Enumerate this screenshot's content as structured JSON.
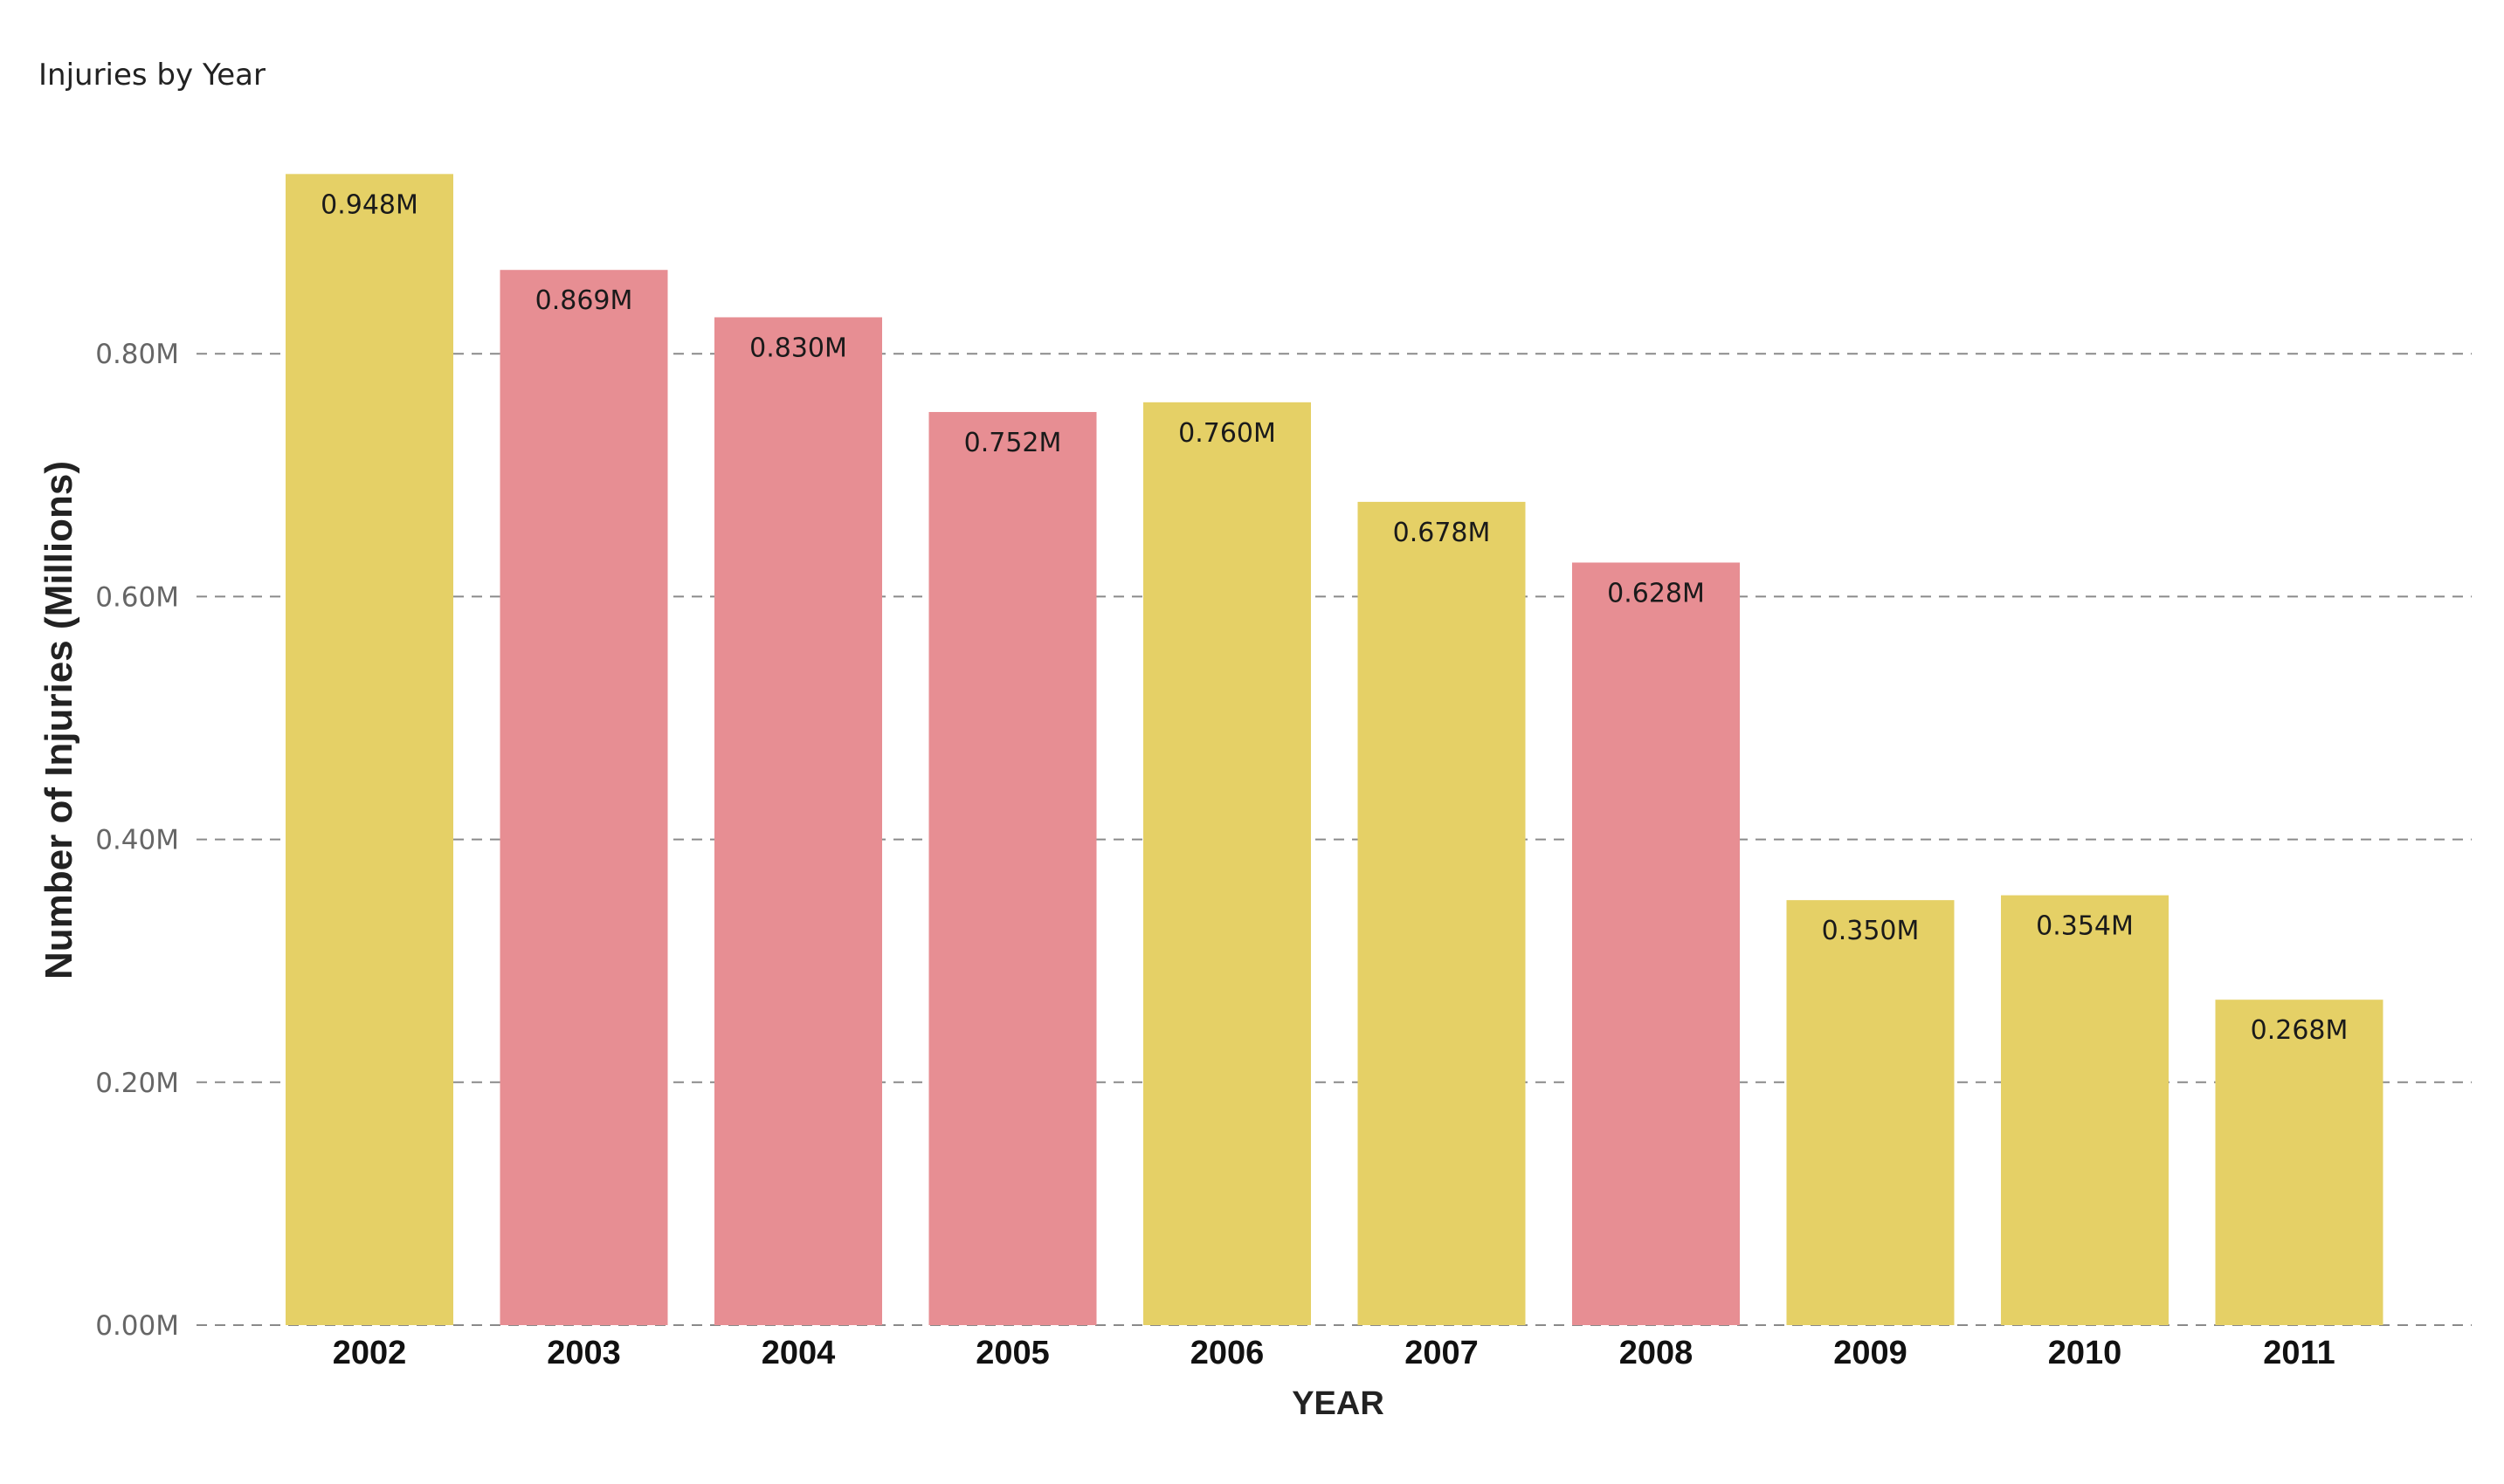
{
  "chart_data": {
    "type": "bar",
    "title": "Injuries by Year",
    "xlabel": "YEAR",
    "ylabel": "Number of Injuries (Millions)",
    "categories": [
      "2002",
      "2003",
      "2004",
      "2005",
      "2006",
      "2007",
      "2008",
      "2009",
      "2010",
      "2011"
    ],
    "values": [
      0.948,
      0.869,
      0.83,
      0.752,
      0.76,
      0.678,
      0.628,
      0.35,
      0.354,
      0.268
    ],
    "data_labels": [
      "0.948M",
      "0.869M",
      "0.830M",
      "0.752M",
      "0.760M",
      "0.678M",
      "0.628M",
      "0.350M",
      "0.354M",
      "0.268M"
    ],
    "bar_colors": [
      "#e5d066",
      "#e78e93",
      "#e78e93",
      "#e78e93",
      "#e5d066",
      "#e5d066",
      "#e78e93",
      "#e5d066",
      "#e5d066",
      "#e5d066"
    ],
    "yticks": [
      0,
      0.2,
      0.4,
      0.6,
      0.8
    ],
    "ytick_labels": [
      "0.00M",
      "0.20M",
      "0.40M",
      "0.60M",
      "0.80M"
    ],
    "ylim": [
      0,
      0.95
    ],
    "grid": true,
    "legend": "none"
  }
}
